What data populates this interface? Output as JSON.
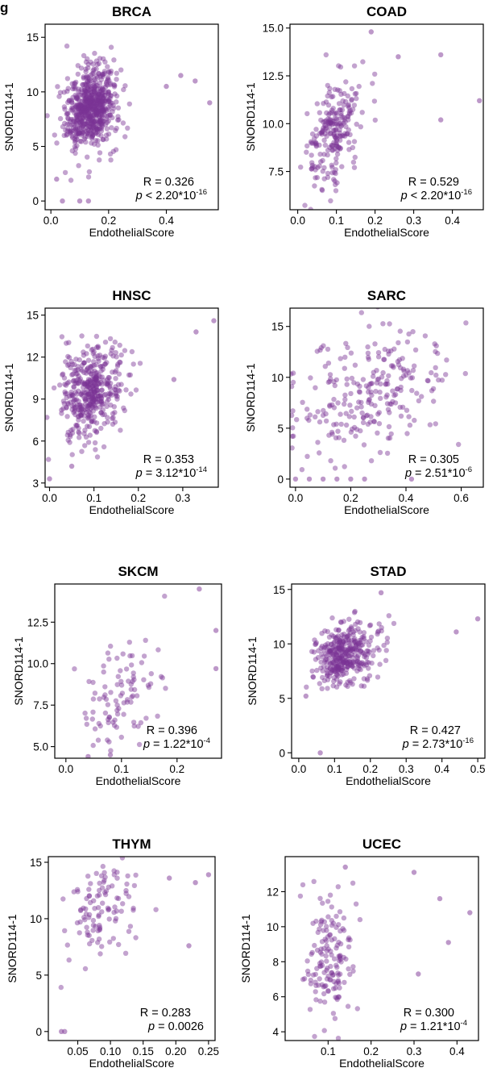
{
  "panel_label": "g",
  "point_color": "#7b3294",
  "shared": {
    "xlabel": "EndothelialScore",
    "ylabel": "SNORD114-1"
  },
  "chart_data": [
    {
      "type": "scatter",
      "title": "BRCA",
      "xlabel": "EndothelialScore",
      "ylabel": "SNORD114-1",
      "xlim": [
        -0.02,
        0.58
      ],
      "ylim": [
        -0.8,
        16.2
      ],
      "xticks": [
        0,
        0.2,
        0.4
      ],
      "xtick_labels": [
        "0.0",
        "0.2",
        "0.4"
      ],
      "yticks": [
        0,
        5,
        10,
        15
      ],
      "ytick_labels": [
        "0",
        "5",
        "10",
        "15"
      ],
      "R": "R = 0.326",
      "p_prefix": "p",
      "p_text": " < 2.20*10",
      "p_exp": "-16",
      "n": 650,
      "x_center": 0.11,
      "x_spread": 0.06,
      "x_skew": 0.6,
      "y_base": 8.3,
      "y_slope": 8,
      "y_noise": 1.8,
      "extra_points": [
        [
          0.04,
          0
        ],
        [
          0.1,
          0
        ],
        [
          0.13,
          0
        ],
        [
          0.02,
          2
        ],
        [
          0.55,
          9
        ],
        [
          0.5,
          11
        ],
        [
          0.45,
          11.5
        ],
        [
          0.4,
          10.5
        ]
      ]
    },
    {
      "type": "scatter",
      "title": "COAD",
      "xlabel": "EndothelialScore",
      "ylabel": "SNORD114-1",
      "xlim": [
        -0.02,
        0.48
      ],
      "ylim": [
        5.5,
        15.2
      ],
      "xticks": [
        0,
        0.1,
        0.2,
        0.3,
        0.4
      ],
      "xtick_labels": [
        "0.0",
        "0.1",
        "0.2",
        "0.3",
        "0.4"
      ],
      "yticks": [
        7.5,
        10,
        12.5,
        15
      ],
      "ytick_labels": [
        "7.5",
        "10.0",
        "12.5",
        "15.0"
      ],
      "R": "R = 0.529",
      "p_prefix": "p",
      "p_text": " < 2.20*10",
      "p_exp": "-16",
      "n": 230,
      "x_center": 0.07,
      "x_spread": 0.045,
      "x_skew": 0.7,
      "y_base": 9.2,
      "y_slope": 16,
      "y_noise": 1.3,
      "extra_points": [
        [
          0.47,
          11.2
        ],
        [
          0.37,
          10.2
        ],
        [
          0.37,
          13.6
        ],
        [
          0.26,
          13.5
        ],
        [
          0.19,
          14.8
        ]
      ]
    },
    {
      "type": "scatter",
      "title": "HNSC",
      "xlabel": "EndothelialScore",
      "ylabel": "SNORD114-1",
      "xlim": [
        -0.01,
        0.38
      ],
      "ylim": [
        2.7,
        15.5
      ],
      "xticks": [
        0,
        0.1,
        0.2,
        0.3
      ],
      "xtick_labels": [
        "0.0",
        "0.1",
        "0.2",
        "0.3"
      ],
      "yticks": [
        3,
        6,
        9,
        12,
        15
      ],
      "ytick_labels": [
        "3",
        "6",
        "9",
        "12",
        "15"
      ],
      "R": "R = 0.353",
      "p_prefix": "p",
      "p_text": " = 3.12*10",
      "p_exp": "-14",
      "n": 430,
      "x_center": 0.07,
      "x_spread": 0.045,
      "x_skew": 0.6,
      "y_base": 9.3,
      "y_slope": 10,
      "y_noise": 1.6,
      "extra_points": [
        [
          0.37,
          14.6
        ],
        [
          0.33,
          13.8
        ],
        [
          0.0,
          3.3
        ],
        [
          0.05,
          4.2
        ],
        [
          0.28,
          10.4
        ]
      ]
    },
    {
      "type": "scatter",
      "title": "SARC",
      "xlabel": "EndothelialScore",
      "ylabel": "SNORD114-1",
      "xlim": [
        -0.02,
        0.68
      ],
      "ylim": [
        -0.8,
        16.8
      ],
      "xticks": [
        0,
        0.2,
        0.4,
        0.6
      ],
      "xtick_labels": [
        "0.0",
        "0.2",
        "0.4",
        "0.6"
      ],
      "yticks": [
        0,
        5,
        10,
        15
      ],
      "ytick_labels": [
        "0",
        "5",
        "10",
        "15"
      ],
      "R": "R = 0.305",
      "p_prefix": "p",
      "p_text": " = 2.51*10",
      "p_exp": "-6",
      "n": 250,
      "x_center": 0.25,
      "x_spread": 0.15,
      "x_skew": 0.0,
      "y_base": 8.5,
      "y_slope": 9,
      "y_noise": 3.2,
      "extra_points": [
        [
          0.0,
          0
        ],
        [
          0.05,
          0
        ],
        [
          0.1,
          0
        ],
        [
          0.15,
          0
        ],
        [
          0.2,
          0
        ],
        [
          0.25,
          0
        ],
        [
          0.42,
          0
        ]
      ]
    },
    {
      "type": "scatter",
      "title": "SKCM",
      "xlabel": "EndothelialScore",
      "ylabel": "SNORD114-1",
      "xlim": [
        -0.02,
        0.28
      ],
      "ylim": [
        4.3,
        14.8
      ],
      "xticks": [
        0,
        0.1,
        0.2
      ],
      "xtick_labels": [
        "0.0",
        "0.1",
        "0.2"
      ],
      "yticks": [
        5,
        7.5,
        10,
        12.5
      ],
      "ytick_labels": [
        "5.0",
        "7.5",
        "10.0",
        "12.5"
      ],
      "R": "R = 0.396",
      "p_prefix": "p",
      "p_text": " = 1.22*10",
      "p_exp": "-4",
      "n": 95,
      "x_center": 0.07,
      "x_spread": 0.05,
      "x_skew": 0.5,
      "y_base": 7.6,
      "y_slope": 14,
      "y_noise": 1.5,
      "extra_points": [
        [
          0.27,
          9.7
        ],
        [
          0.27,
          12
        ],
        [
          0.24,
          14.5
        ],
        [
          0.08,
          4.5
        ],
        [
          0.04,
          4.4
        ]
      ]
    },
    {
      "type": "scatter",
      "title": "STAD",
      "xlabel": "EndothelialScore",
      "ylabel": "SNORD114-1",
      "xlim": [
        -0.02,
        0.52
      ],
      "ylim": [
        -0.5,
        15.5
      ],
      "xticks": [
        0,
        0.1,
        0.2,
        0.3,
        0.4,
        0.5
      ],
      "xtick_labels": [
        "0.0",
        "0.1",
        "0.2",
        "0.3",
        "0.4",
        "0.5"
      ],
      "yticks": [
        0,
        5,
        10,
        15
      ],
      "ytick_labels": [
        "0",
        "5",
        "10",
        "15"
      ],
      "R": "R = 0.427",
      "p_prefix": "p",
      "p_text": " = 2.73*10",
      "p_exp": "-16",
      "n": 370,
      "x_center": 0.1,
      "x_spread": 0.06,
      "x_skew": 0.6,
      "y_base": 8.9,
      "y_slope": 8,
      "y_noise": 1.3,
      "extra_points": [
        [
          0.06,
          0
        ],
        [
          0.5,
          12.3
        ],
        [
          0.44,
          11.1
        ],
        [
          0.23,
          14.7
        ],
        [
          0.02,
          5.2
        ]
      ]
    },
    {
      "type": "scatter",
      "title": "THYM",
      "xlabel": "EndothelialScore",
      "ylabel": "SNORD114-1",
      "xlim": [
        0.005,
        0.26
      ],
      "ylim": [
        -0.8,
        15.5
      ],
      "xticks": [
        0.05,
        0.1,
        0.15,
        0.2,
        0.25
      ],
      "xtick_labels": [
        "0.05",
        "0.10",
        "0.15",
        "0.20",
        "0.25"
      ],
      "yticks": [
        0,
        5,
        10,
        15
      ],
      "ytick_labels": [
        "0",
        "5",
        "10",
        "15"
      ],
      "R": "R = 0.283",
      "p_prefix": "p",
      "p_text": " = 0.0026",
      "p_exp": "",
      "n": 110,
      "x_center": 0.07,
      "x_spread": 0.035,
      "x_skew": 0.5,
      "y_base": 10.8,
      "y_slope": 14,
      "y_noise": 2.2,
      "extra_points": [
        [
          0.025,
          0
        ],
        [
          0.03,
          0
        ],
        [
          0.25,
          13.9
        ],
        [
          0.22,
          7.6
        ],
        [
          0.19,
          13.6
        ],
        [
          0.23,
          13.2
        ]
      ]
    },
    {
      "type": "scatter",
      "title": "UCEC",
      "xlabel": "EndothelialScore",
      "ylabel": "SNORD114-1",
      "xlim": [
        0.0,
        0.45
      ],
      "ylim": [
        3.5,
        14.0
      ],
      "xticks": [
        0.1,
        0.2,
        0.3,
        0.4
      ],
      "xtick_labels": [
        "0.1",
        "0.2",
        "0.3",
        "0.4"
      ],
      "yticks": [
        4,
        6,
        8,
        10,
        12
      ],
      "ytick_labels": [
        "4",
        "6",
        "8",
        "10",
        "12"
      ],
      "R": "R = 0.300",
      "p_prefix": "p",
      "p_text": " = 1.21*10",
      "p_exp": "-4",
      "n": 150,
      "x_center": 0.09,
      "x_spread": 0.035,
      "x_skew": 0.5,
      "y_base": 7.8,
      "y_slope": 10,
      "y_noise": 1.8,
      "extra_points": [
        [
          0.43,
          10.8
        ],
        [
          0.38,
          9.1
        ],
        [
          0.36,
          11.6
        ],
        [
          0.3,
          13.1
        ],
        [
          0.14,
          13.4
        ],
        [
          0.31,
          7.3
        ]
      ]
    }
  ]
}
